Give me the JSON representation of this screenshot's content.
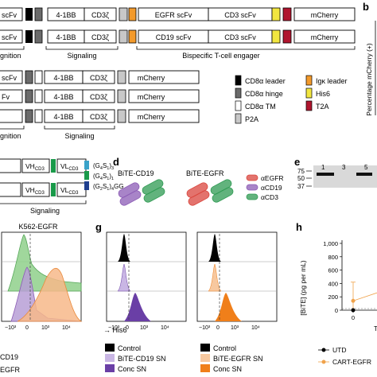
{
  "constructs": {
    "row1": {
      "bb": "4-1BB",
      "cd3z": "CD3ζ",
      "scfv1": "EGFR scFv",
      "scfv2": "CD3 scFv",
      "reporter": "mCherry"
    },
    "row2": {
      "bb": "4-1BB",
      "cd3z": "CD3ζ",
      "scfv1": "CD19 scFv",
      "scfv2": "CD3 scFv",
      "reporter": "mCherry"
    },
    "row3": {
      "scfv": "scFv",
      "bb": "4-1BB",
      "cd3z": "CD3ζ",
      "reporter": "mCherry"
    },
    "row4": {
      "scfv": "Fv",
      "bb": "4-1BB",
      "cd3z": "CD3ζ",
      "reporter": "mCherry"
    },
    "row5": {
      "bb": "4-1BB",
      "cd3z": "CD3ζ",
      "reporter": "mCherry"
    },
    "row1_partial": "scFv",
    "row2_partial": "scFv",
    "section_recognition": "gnition",
    "section_signaling": "Signaling",
    "section_bite": "Bispecific T-cell engager",
    "section_recognition_2": "gnition",
    "section_signaling_2": "Signaling"
  },
  "legend": {
    "items": [
      {
        "label": "CD8α leader",
        "color": "#000000"
      },
      {
        "label": "CD8α hinge",
        "color": "#6b6b6b"
      },
      {
        "label": "CD8α TM",
        "color": "#ffffff"
      },
      {
        "label": "P2A",
        "color": "#c8c8c8"
      },
      {
        "label": "Igκ leader",
        "color": "#f39a2b"
      },
      {
        "label": "His6",
        "color": "#f2e640"
      },
      {
        "label": "T2A",
        "color": "#b0152e"
      }
    ]
  },
  "linkers": {
    "vh": "VH",
    "vh_sub": "CD3",
    "vl": "VL",
    "vl_sub": "CD3",
    "signaling": "Signaling",
    "items": [
      {
        "label": "(G4S1)3",
        "color": "#3aa3c9"
      },
      {
        "label": "(G4S1)1",
        "color": "#1a9a4a"
      },
      {
        "label": "(G2S1)4GG",
        "color": "#1f3f8f"
      }
    ]
  },
  "panel_b": {
    "letter": "b",
    "ylabel": "Percentage mCherry (+)"
  },
  "panel_d": {
    "letter": "d",
    "bite_cd19": "BiTE-CD19",
    "bite_egfr": "BiTE-EGFR",
    "legend": [
      "αEGFR",
      "αCD19",
      "αCD3"
    ],
    "legend_colors": [
      "#d9443c",
      "#8b5bb5",
      "#2e9a52"
    ]
  },
  "panel_e": {
    "letter": "e",
    "markers": [
      "75",
      "50",
      "37"
    ],
    "lanes": [
      "1",
      "3",
      "5"
    ]
  },
  "panel_f": {
    "title": "K562-EGFR",
    "xticks": [
      "−10³",
      "0",
      "10³",
      "10⁴"
    ],
    "legend": [
      "CD19",
      "EGFR"
    ]
  },
  "panel_g": {
    "letter": "g",
    "xticks": [
      "−10³",
      "0",
      "10³",
      "10⁴"
    ],
    "xlabel": "His6",
    "legend1": [
      "Control",
      "BiTE-CD19 SN",
      "Conc SN"
    ],
    "legend2": [
      "Control",
      "BiTE-EGFR SN",
      "Conc SN"
    ]
  },
  "panel_h": {
    "letter": "h",
    "ylabel": "[BiTE] (pg per mL)",
    "yticks": [
      "1,000",
      "800",
      "600",
      "400",
      "200",
      "0"
    ],
    "xtick": "0",
    "legend": [
      "UTD",
      "CART-EGFR"
    ],
    "xlabel_partial": "T"
  },
  "chart_data": [
    {
      "type": "line",
      "title": "",
      "ylabel": "[BiTE] (pg per mL)",
      "ylim": [
        0,
        1000
      ],
      "x": [
        0
      ],
      "series": [
        {
          "name": "UTD",
          "values": [
            0
          ]
        },
        {
          "name": "CART-EGFR",
          "values": [
            140
          ]
        }
      ]
    }
  ]
}
